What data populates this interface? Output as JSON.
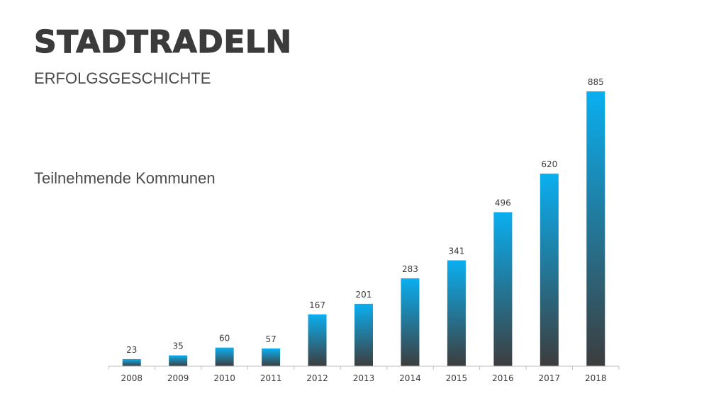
{
  "header": {
    "title": "STADTRADELN",
    "subtitle": "ERFOLGSGESCHICHTE"
  },
  "chart_label": "Teilnehmende Kommunen",
  "colors": {
    "bar_top": "#0aaff0",
    "bar_bottom": "#3d3d3d",
    "axis": "#bfbfbf",
    "text": "#3b3b3b"
  },
  "chart_data": {
    "type": "bar",
    "title": "Teilnehmende Kommunen",
    "categories": [
      "2008",
      "2009",
      "2010",
      "2011",
      "2012",
      "2013",
      "2014",
      "2015",
      "2016",
      "2017",
      "2018"
    ],
    "values": [
      23,
      35,
      60,
      57,
      167,
      201,
      283,
      341,
      496,
      620,
      885
    ],
    "xlabel": "",
    "ylabel": "",
    "ylim": [
      0,
      885
    ],
    "grid": false,
    "data_labels": true
  }
}
